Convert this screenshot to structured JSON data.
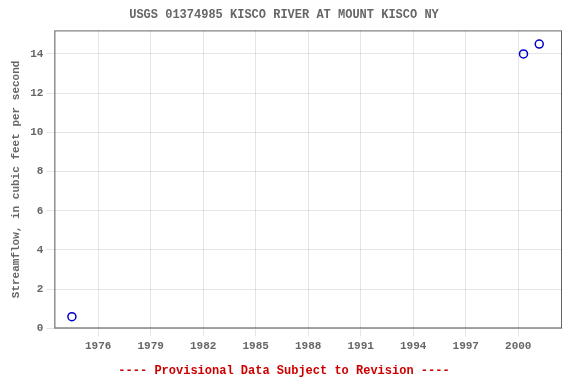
{
  "chart_data": {
    "type": "scatter",
    "title": "USGS 01374985 KISCO RIVER AT MOUNT KISCO NY",
    "ylabel": "Streamflow, in cubic feet per second",
    "x": [
      1974.5,
      2000.3,
      2001.2
    ],
    "values": [
      0.6,
      14.0,
      14.5
    ],
    "color": "#0000cc",
    "marker": "circle",
    "xlim": [
      1973.5,
      2002.5
    ],
    "ylim": [
      0,
      15.2
    ],
    "xticks": [
      1976,
      1979,
      1982,
      1985,
      1988,
      1991,
      1994,
      1997,
      2000
    ],
    "yticks": [
      0,
      2,
      4,
      6,
      8,
      10,
      12,
      14
    ],
    "grid": true,
    "annotations": [
      {
        "text": "---- Provisional Data Subject to Revision ----",
        "color": "#cc0000"
      }
    ]
  }
}
